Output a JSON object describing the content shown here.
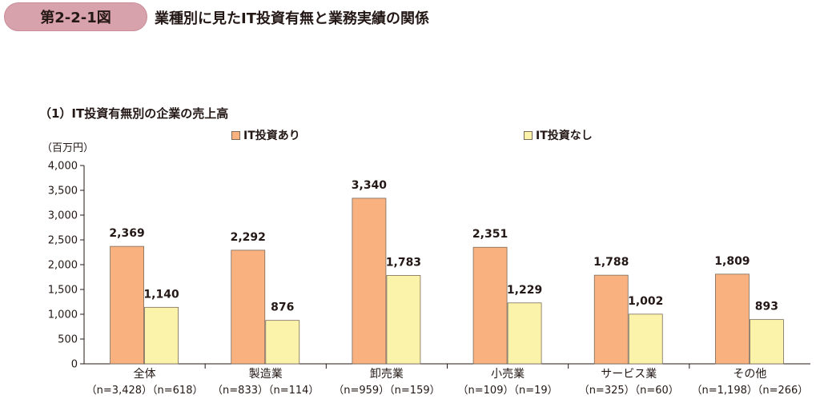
{
  "header": {
    "figure_number": "第2-2-1図",
    "figure_title": "業種別に見たIT投資有無と業務実績の関係"
  },
  "chart_data": {
    "type": "bar",
    "title": "（1）IT投資有無別の企業の売上高",
    "ylabel": "（百万円）",
    "xlabel": "",
    "ylim": [
      0,
      4000
    ],
    "yticks": [
      0,
      500,
      1000,
      1500,
      2000,
      2500,
      3000,
      3500,
      4000
    ],
    "ytick_labels": [
      "0",
      "500",
      "1,000",
      "1,500",
      "2,000",
      "2,500",
      "3,000",
      "3,500",
      "4,000"
    ],
    "categories": [
      "全体",
      "製造業",
      "卸売業",
      "小売業",
      "サービス業",
      "その他"
    ],
    "category_notes": [
      "（n=3,428）（n=618）",
      "（n=833）（n=114）",
      "（n=959）（n=159）",
      "（n=109）（n=19）",
      "（n=325）（n=60）",
      "（n=1,198）（n=266）"
    ],
    "series": [
      {
        "name": "IT投資あり",
        "color": "#f9b27f",
        "values": [
          2369,
          2292,
          3340,
          2351,
          1788,
          1809
        ],
        "labels": [
          "2,369",
          "2,292",
          "3,340",
          "2,351",
          "1,788",
          "1,809"
        ]
      },
      {
        "name": "IT投資なし",
        "color": "#fbf3a9",
        "values": [
          1140,
          876,
          1783,
          1229,
          1002,
          893
        ],
        "labels": [
          "1,140",
          "876",
          "1,783",
          "1,229",
          "1,002",
          "893"
        ]
      }
    ],
    "legend_position": "top",
    "grid": false
  }
}
